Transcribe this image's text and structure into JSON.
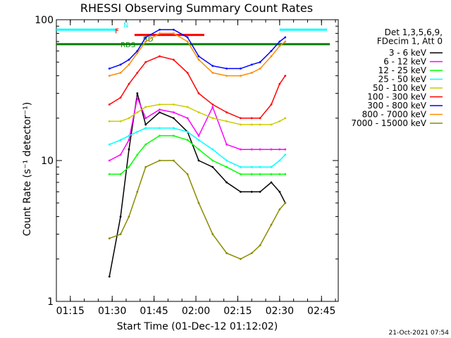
{
  "chart_data": {
    "type": "line",
    "title": "RHESSI Observing Summary Count Rates",
    "xlabel": "Start Time (01-Dec-12 01:12:02)",
    "ylabel": "Count Rate (s⁻¹ detector⁻¹)",
    "y_scale": "log",
    "ylim": [
      1,
      100
    ],
    "y_ticks": [
      "1",
      "10",
      "100"
    ],
    "xlim": [
      "01:10",
      "02:51"
    ],
    "x_ticks": [
      "01:15",
      "01:30",
      "01:45",
      "02:00",
      "02:15",
      "02:30",
      "02:45"
    ],
    "legend_header": [
      "Det 1,3,5,6,9,",
      "FDecim 1, Att 0"
    ],
    "legend_position": "right",
    "flag_labels": [
      "N",
      "F",
      "RD",
      "RDS"
    ],
    "footer_date": "21-Oct-2021 07:54",
    "colors": {
      "3 - 6 keV": "#000000",
      "6 - 12 keV": "#ff00ff",
      "12 - 25 keV": "#00ff00",
      "25 - 50 keV": "#00ffff",
      "50 - 100 keV": "#cccc00",
      "100 - 300 keV": "#ff0000",
      "300 - 800 keV": "#0000ff",
      "800 - 7000 keV": "#ff8c00",
      "7000 - 15000 keV": "#8b8b00"
    },
    "series": [
      {
        "name": "3 - 6 keV",
        "x": [
          "01:29",
          "01:33",
          "01:36",
          "01:39",
          "01:42",
          "01:47",
          "01:52",
          "01:57",
          "02:01",
          "02:06",
          "02:11",
          "02:16",
          "02:20",
          "02:23",
          "02:27",
          "02:30",
          "02:32"
        ],
        "y": [
          1.5,
          4,
          12,
          30,
          18,
          22,
          20,
          16,
          10,
          9,
          7,
          6,
          6,
          6,
          7,
          6,
          5
        ]
      },
      {
        "name": "6 - 12 keV",
        "x": [
          "01:29",
          "01:33",
          "01:36",
          "01:39",
          "01:42",
          "01:47",
          "01:52",
          "01:57",
          "02:01",
          "02:06",
          "02:11",
          "02:16",
          "02:20",
          "02:23",
          "02:27",
          "02:30",
          "02:32"
        ],
        "y": [
          10,
          11,
          14,
          28,
          20,
          23,
          22,
          20,
          15,
          24,
          13,
          12,
          12,
          12,
          12,
          12,
          12
        ]
      },
      {
        "name": "12 - 25 keV",
        "x": [
          "01:29",
          "01:33",
          "01:36",
          "01:39",
          "01:42",
          "01:47",
          "01:52",
          "01:57",
          "02:01",
          "02:06",
          "02:11",
          "02:16",
          "02:20",
          "02:23",
          "02:27",
          "02:30",
          "02:32"
        ],
        "y": [
          8,
          8,
          9,
          11,
          13,
          15,
          15,
          14,
          12,
          10,
          9,
          8,
          8,
          8,
          8,
          8,
          8
        ]
      },
      {
        "name": "25 - 50 keV",
        "x": [
          "01:29",
          "01:33",
          "01:36",
          "01:39",
          "01:42",
          "01:47",
          "01:52",
          "01:57",
          "02:01",
          "02:06",
          "02:11",
          "02:16",
          "02:20",
          "02:23",
          "02:27",
          "02:30",
          "02:32"
        ],
        "y": [
          13,
          14,
          15,
          16,
          17,
          17,
          17,
          16,
          14,
          12,
          10,
          9,
          9,
          9,
          9,
          10,
          11
        ]
      },
      {
        "name": "50 - 100 keV",
        "x": [
          "01:29",
          "01:33",
          "01:36",
          "01:39",
          "01:42",
          "01:47",
          "01:52",
          "01:57",
          "02:01",
          "02:06",
          "02:11",
          "02:16",
          "02:20",
          "02:23",
          "02:27",
          "02:30",
          "02:32"
        ],
        "y": [
          19,
          19,
          20,
          22,
          24,
          25,
          25,
          24,
          22,
          20,
          19,
          18,
          18,
          18,
          18,
          19,
          20
        ]
      },
      {
        "name": "100 - 300 keV",
        "x": [
          "01:29",
          "01:33",
          "01:36",
          "01:39",
          "01:42",
          "01:47",
          "01:52",
          "01:57",
          "02:01",
          "02:06",
          "02:11",
          "02:16",
          "02:20",
          "02:23",
          "02:27",
          "02:30",
          "02:32"
        ],
        "y": [
          25,
          28,
          35,
          42,
          50,
          55,
          52,
          42,
          30,
          25,
          22,
          20,
          20,
          20,
          25,
          35,
          40
        ]
      },
      {
        "name": "300 - 800 keV",
        "x": [
          "01:29",
          "01:33",
          "01:36",
          "01:39",
          "01:42",
          "01:47",
          "01:52",
          "01:57",
          "02:01",
          "02:06",
          "02:11",
          "02:16",
          "02:20",
          "02:23",
          "02:27",
          "02:30",
          "02:32"
        ],
        "y": [
          45,
          48,
          52,
          60,
          75,
          85,
          85,
          75,
          55,
          47,
          45,
          45,
          48,
          50,
          60,
          70,
          75
        ]
      },
      {
        "name": "800 - 7000 keV",
        "x": [
          "01:29",
          "01:33",
          "01:36",
          "01:39",
          "01:42",
          "01:47",
          "01:52",
          "01:57",
          "02:01",
          "02:06",
          "02:11",
          "02:16",
          "02:20",
          "02:23",
          "02:27",
          "02:30",
          "02:32"
        ],
        "y": [
          40,
          42,
          48,
          58,
          70,
          80,
          80,
          70,
          52,
          42,
          40,
          40,
          42,
          45,
          55,
          65,
          70
        ]
      },
      {
        "name": "7000 - 15000 keV",
        "x": [
          "01:29",
          "01:33",
          "01:36",
          "01:39",
          "01:42",
          "01:47",
          "01:52",
          "01:57",
          "02:01",
          "02:06",
          "02:11",
          "02:16",
          "02:20",
          "02:23",
          "02:27",
          "02:30",
          "02:32"
        ],
        "y": [
          2.8,
          3,
          4,
          6,
          9,
          10,
          10,
          8,
          5,
          3,
          2.2,
          2,
          2.2,
          2.5,
          3.5,
          4.5,
          5
        ]
      }
    ],
    "flags": [
      {
        "color": "#00ffff",
        "x": [
          "01:10",
          "01:32"
        ],
        "y": 85
      },
      {
        "color": "#00ffff",
        "x": [
          "02:30",
          "02:47"
        ],
        "y": 85
      },
      {
        "color": "#ff0000",
        "x": [
          "01:38",
          "02:03"
        ],
        "y": 78
      },
      {
        "color": "#008000",
        "x": [
          "01:10",
          "02:48"
        ],
        "y": 67
      }
    ]
  }
}
